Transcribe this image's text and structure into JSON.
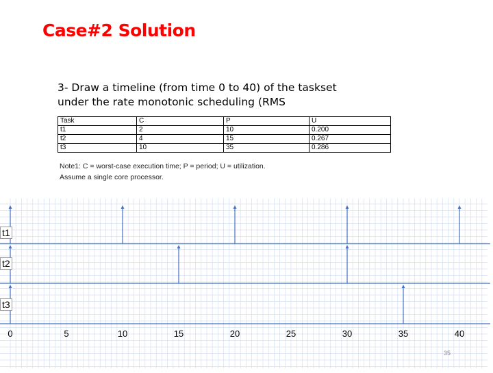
{
  "title": "Case#2 Solution",
  "question": {
    "line1": "3- Draw a timeline (from time 0 to 40) of the taskset",
    "line2": "under the rate monotonic scheduling (RMS"
  },
  "table": {
    "headers": [
      "Task",
      "C",
      "P",
      "U"
    ],
    "rows": [
      [
        "t1",
        "2",
        "10",
        "0.200"
      ],
      [
        "t2",
        "4",
        "15",
        "0.267"
      ],
      [
        "t3",
        "10",
        "35",
        "0.286"
      ]
    ]
  },
  "notes": {
    "line1": "Note1: C = worst-case execution time; P = period; U = utilization.",
    "line2": "Assume a single core processor."
  },
  "timeline": {
    "rows": [
      "t1",
      "t2",
      "t3"
    ],
    "ticks": [
      "0",
      "5",
      "10",
      "15",
      "20",
      "25",
      "30",
      "35",
      "40"
    ],
    "arrivals": {
      "t1": [
        0,
        10,
        20,
        30,
        40
      ],
      "t2": [
        0,
        15,
        30
      ],
      "t3": [
        0,
        35
      ]
    },
    "colors": {
      "line": "#4472c4",
      "grid": "#d9e2f3"
    }
  },
  "page_number": "35"
}
